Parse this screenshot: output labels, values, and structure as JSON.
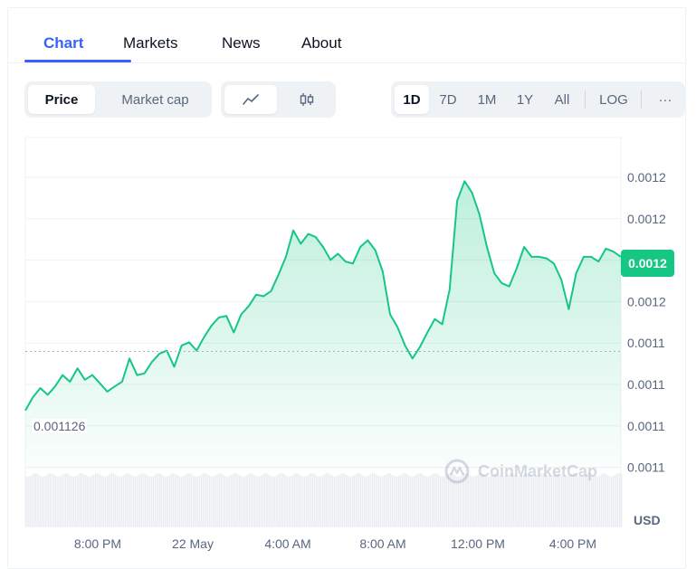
{
  "tabs": [
    "Chart",
    "Markets",
    "News",
    "About"
  ],
  "metric_toggle": {
    "price": "Price",
    "market_cap": "Market cap"
  },
  "chart_type_icons": [
    "line-chart-icon",
    "candlestick-icon"
  ],
  "ranges": [
    "1D",
    "7D",
    "1M",
    "1Y",
    "All",
    "LOG"
  ],
  "more_label": "···",
  "current_price_label": "0.0012",
  "reference_price_label": "0.001126",
  "currency": "USD",
  "watermark": "CoinMarketCap",
  "colors": {
    "accent": "#3861fb",
    "up": "#16c784"
  },
  "chart_data": {
    "type": "area",
    "ylabels": [
      "0.0012",
      "0.0012",
      "0.0012",
      "0.0012",
      "0.0011",
      "0.0011",
      "0.0011",
      "0.0011"
    ],
    "xlabels": [
      "8:00 PM",
      "22 May",
      "4:00 AM",
      "8:00 AM",
      "12:00 PM",
      "4:00 PM"
    ],
    "x": [
      0,
      1,
      2,
      3,
      4,
      5,
      6,
      7,
      8,
      9,
      10,
      11,
      12,
      13,
      14,
      15,
      16,
      17,
      18,
      19,
      20,
      21,
      22,
      23,
      24,
      25,
      26,
      27,
      28,
      29,
      30,
      31,
      32,
      33,
      34,
      35,
      36,
      37,
      38,
      39,
      40,
      41,
      42,
      43,
      44,
      45,
      46,
      47,
      48,
      49,
      50,
      51,
      52,
      53,
      54,
      55,
      56,
      57,
      58,
      59,
      60,
      61,
      62,
      63,
      64,
      65,
      66,
      67,
      68,
      69,
      70,
      71,
      72,
      73,
      74,
      75,
      76,
      77,
      78,
      79,
      80
    ],
    "values": [
      0.001111,
      0.0011143,
      0.0011167,
      0.001115,
      0.0011171,
      0.00112,
      0.0011183,
      0.0011217,
      0.0011188,
      0.00112,
      0.0011179,
      0.0011158,
      0.0011171,
      0.0011183,
      0.0011242,
      0.00112,
      0.0011204,
      0.0011233,
      0.0011254,
      0.0011262,
      0.0011221,
      0.0011275,
      0.0011283,
      0.0011262,
      0.0011296,
      0.0011325,
      0.0011346,
      0.001135,
      0.0011308,
      0.0011354,
      0.0011375,
      0.0011404,
      0.00114,
      0.0011413,
      0.0011454,
      0.00115,
      0.0011567,
      0.0011533,
      0.0011558,
      0.001155,
      0.0011525,
      0.0011492,
      0.0011508,
      0.0011488,
      0.0011483,
      0.0011525,
      0.0011542,
      0.0011517,
      0.0011463,
      0.0011354,
      0.0011321,
      0.0011275,
      0.0011242,
      0.0011271,
      0.0011308,
      0.0011342,
      0.0011329,
      0.0011417,
      0.0011642,
      0.0011692,
      0.0011663,
      0.0011608,
      0.0011525,
      0.0011458,
      0.0011433,
      0.0011425,
      0.0011471,
      0.0011525,
      0.00115,
      0.00115,
      0.0011496,
      0.0011483,
      0.0011442,
      0.0011367,
      0.0011458,
      0.00115,
      0.00115,
      0.0011488,
      0.0011521,
      0.0011513,
      0.00115
    ],
    "ylim": [
      0.0010958,
      0.001175
    ],
    "reference_value": 0.001126,
    "current_value": 0.00115
  }
}
